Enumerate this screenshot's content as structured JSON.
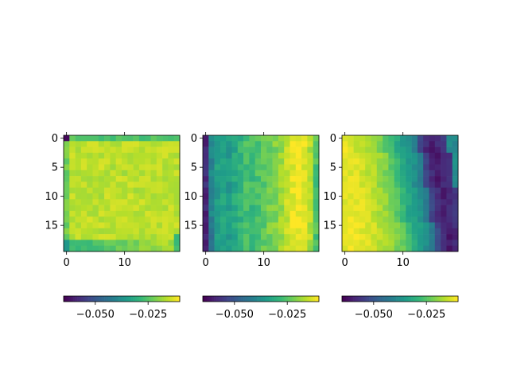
{
  "chart_data": [
    {
      "type": "heatmap",
      "title": "",
      "xlabel": "",
      "ylabel": "",
      "grid": false,
      "colormap": "viridis",
      "shape": [
        20,
        20
      ],
      "value_range": [
        -0.07,
        -0.01
      ],
      "pattern": "bright plateau, dark top-left corner pixel, slightly darker top/bottom/left edges",
      "x_ticks": [
        "0",
        "10"
      ],
      "y_ticks": [
        "0",
        "5",
        "10",
        "15"
      ],
      "colorbar_ticks": [
        "−0.050",
        "−0.025"
      ],
      "colorbar_range": [
        -0.065,
        -0.01
      ]
    },
    {
      "type": "heatmap",
      "title": "",
      "xlabel": "",
      "ylabel": "",
      "grid": false,
      "colormap": "viridis",
      "shape": [
        20,
        20
      ],
      "value_range": [
        -0.065,
        -0.01
      ],
      "pattern": "dark left column, mid teal-green band in centre, bright yellow band near right, slight darkening at far right",
      "x_ticks": [
        "0",
        "10"
      ],
      "y_ticks": [
        "0",
        "5",
        "10",
        "15"
      ],
      "colorbar_ticks": [
        "−0.050",
        "−0.025"
      ],
      "colorbar_range": [
        -0.065,
        -0.01
      ]
    },
    {
      "type": "heatmap",
      "title": "",
      "xlabel": "",
      "ylabel": "",
      "grid": false,
      "colormap": "viridis",
      "shape": [
        20,
        20
      ],
      "value_range": [
        -0.07,
        -0.01
      ],
      "pattern": "bright yellow left, fading through green and teal to dark purple band near right, teal last column",
      "x_ticks": [
        "0",
        "10"
      ],
      "y_ticks": [
        "0",
        "5",
        "10",
        "15"
      ],
      "colorbar_ticks": [
        "−0.050",
        "−0.025"
      ],
      "colorbar_range": [
        -0.065,
        -0.01
      ]
    }
  ]
}
